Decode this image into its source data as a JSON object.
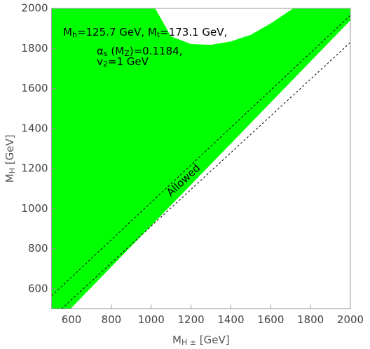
{
  "chart_data": {
    "type": "region",
    "region": {
      "color": "#00ff00",
      "x": [
        500,
        595,
        2000,
        2000,
        1713,
        1600,
        1500,
        1400,
        1300,
        1200,
        1100,
        1020,
        500
      ],
      "y": [
        500,
        500,
        1940,
        2000,
        2000,
        1925,
        1868,
        1835,
        1818,
        1822,
        1860,
        2000,
        2000
      ]
    },
    "series": [
      {
        "color": "#000000",
        "x": [
          500,
          2000
        ],
        "values": [
          565,
          1965
        ]
      },
      {
        "color": "#000000",
        "x": [
          550,
          2000
        ],
        "values": [
          500,
          1830
        ]
      }
    ],
    "annotations": [
      [
        "M",
        "h",
        "=125.7 GeV, M",
        "t",
        "=173.1 GeV,"
      ],
      [
        "α",
        "s",
        " (M",
        "Z",
        ")=0.1184,"
      ],
      [
        "v",
        "2",
        "=1 GeV"
      ]
    ],
    "region_label": "Allowed",
    "xlabel": [
      "M",
      "H ±",
      " [GeV]"
    ],
    "ylabel": [
      "M",
      "H",
      " [GeV]"
    ],
    "xlim": [
      500,
      2000
    ],
    "ylim": [
      500,
      2000
    ],
    "xticks": [
      600,
      800,
      1000,
      1200,
      1400,
      1600,
      1800,
      2000
    ],
    "yticks": [
      600,
      800,
      1000,
      1200,
      1400,
      1600,
      1800,
      2000
    ],
    "grid": false
  }
}
